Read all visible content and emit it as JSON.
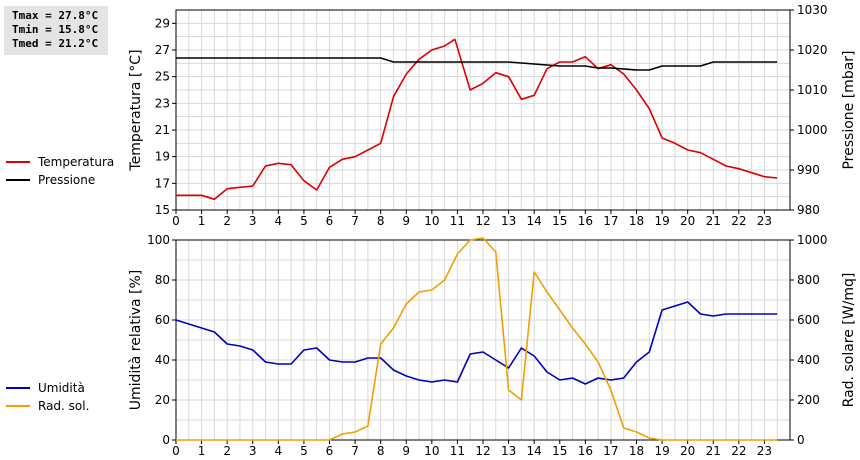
{
  "stats": {
    "tmax": "Tmax = 27.8°C",
    "tmin": "Tmin = 15.8°C",
    "tmed": "Tmed = 21.2°C"
  },
  "colors": {
    "temperature": "#dd0000",
    "pressure": "#000000",
    "humidity": "#0000bb",
    "solar": "#f0a000",
    "grid": "#d8d8d8"
  },
  "chart_data": [
    {
      "type": "line",
      "grid": true,
      "x_ticks": [
        0,
        1,
        2,
        3,
        4,
        5,
        6,
        7,
        8,
        9,
        10,
        11,
        12,
        13,
        14,
        15,
        16,
        17,
        18,
        19,
        20,
        21,
        22,
        23
      ],
      "xlim": [
        0,
        24
      ],
      "ylabel": "Temperatura [°C]",
      "ylim": [
        15,
        30
      ],
      "y_ticks": [
        15,
        17,
        19,
        21,
        23,
        25,
        27,
        29
      ],
      "y2label": "Pressione [mbar]",
      "y2lim": [
        980,
        1030
      ],
      "y2_ticks": [
        980,
        990,
        1000,
        1010,
        1020,
        1030
      ],
      "legend": [
        {
          "name": "Temperatura",
          "color": "#dd0000"
        },
        {
          "name": "Pressione",
          "color": "#000000"
        }
      ],
      "series": [
        {
          "name": "Temperatura",
          "axis": "left",
          "color": "#dd0000",
          "x": [
            0,
            0.5,
            1,
            1.5,
            2,
            2.5,
            3,
            3.5,
            4,
            4.5,
            5,
            5.5,
            6,
            6.5,
            7,
            7.5,
            8,
            8.5,
            9,
            9.5,
            10,
            10.5,
            10.9,
            11.5,
            12,
            12.5,
            13,
            13.5,
            14,
            14.5,
            15,
            15.5,
            16,
            16.5,
            17,
            17.5,
            18,
            18.5,
            19,
            19.5,
            20,
            20.5,
            21,
            21.5,
            22,
            22.5,
            23,
            23.5
          ],
          "y": [
            16.1,
            16.1,
            16.1,
            15.8,
            16.6,
            16.7,
            16.8,
            18.3,
            18.5,
            18.4,
            17.2,
            16.5,
            18.2,
            18.8,
            19,
            19.5,
            20,
            23.5,
            25.2,
            26.3,
            27,
            27.3,
            27.8,
            24,
            24.5,
            25.3,
            25,
            23.3,
            23.6,
            25.6,
            26.1,
            26.1,
            26.5,
            25.6,
            25.9,
            25.2,
            24,
            22.6,
            20.4,
            20,
            19.5,
            19.3,
            18.8,
            18.3,
            18.1,
            17.8,
            17.5,
            17.4
          ]
        },
        {
          "name": "Pressione",
          "axis": "right",
          "color": "#000000",
          "x": [
            0,
            8,
            8.5,
            13,
            15,
            16,
            16.5,
            17,
            18,
            18.5,
            19,
            20,
            20.5,
            21,
            23.5
          ],
          "y": [
            1018,
            1018,
            1017,
            1017,
            1016,
            1016,
            1015.5,
            1015.5,
            1015,
            1015,
            1016,
            1016,
            1016,
            1017,
            1017
          ]
        }
      ]
    },
    {
      "type": "line",
      "grid": true,
      "x_ticks": [
        0,
        1,
        2,
        3,
        4,
        5,
        6,
        7,
        8,
        9,
        10,
        11,
        12,
        13,
        14,
        15,
        16,
        17,
        18,
        19,
        20,
        21,
        22,
        23
      ],
      "xlim": [
        0,
        24
      ],
      "ylabel": "Umidità relativa [%]",
      "ylim": [
        0,
        100
      ],
      "y_ticks": [
        0,
        20,
        40,
        60,
        80,
        100
      ],
      "y2label": "Rad. solare [W/mq]",
      "y2lim": [
        0,
        1000
      ],
      "y2_ticks": [
        0,
        200,
        400,
        600,
        800,
        1000
      ],
      "legend": [
        {
          "name": "Umidità",
          "color": "#0000bb"
        },
        {
          "name": "Rad. sol.",
          "color": "#f0a000"
        }
      ],
      "series": [
        {
          "name": "Umidità",
          "axis": "left",
          "color": "#0000bb",
          "x": [
            0,
            0.5,
            1,
            1.5,
            2,
            2.5,
            3,
            3.5,
            4,
            4.5,
            5,
            5.5,
            6,
            6.5,
            7,
            7.5,
            8,
            8.5,
            9,
            9.5,
            10,
            10.5,
            11,
            11.5,
            12,
            12.5,
            13,
            13.5,
            14,
            14.5,
            15,
            15.5,
            16,
            16.5,
            17,
            17.5,
            18,
            18.5,
            19,
            19.5,
            20,
            20.5,
            21,
            21.5,
            22,
            22.5,
            23,
            23.5
          ],
          "y": [
            60,
            58,
            56,
            54,
            48,
            47,
            45,
            39,
            38,
            38,
            45,
            46,
            40,
            39,
            39,
            41,
            41,
            35,
            32,
            30,
            29,
            30,
            29,
            43,
            44,
            40,
            36,
            46,
            42,
            34,
            30,
            31,
            28,
            31,
            30,
            31,
            39,
            44,
            65,
            67,
            69,
            63,
            62,
            63,
            63,
            63,
            63,
            63
          ]
        },
        {
          "name": "Rad. sol.",
          "axis": "right",
          "color": "#f0a000",
          "x": [
            0,
            1,
            2,
            3,
            4,
            5,
            6,
            6.5,
            7,
            7.5,
            8,
            8.5,
            9,
            9.5,
            10,
            10.5,
            11,
            11.5,
            12,
            12.5,
            13,
            13.5,
            14,
            14.5,
            15,
            15.5,
            16,
            16.5,
            17,
            17.5,
            18,
            18.5,
            19,
            19.5,
            20,
            21,
            22,
            23,
            23.5
          ],
          "y": [
            0,
            0,
            0,
            0,
            0,
            0,
            0,
            30,
            40,
            70,
            480,
            560,
            680,
            740,
            750,
            800,
            930,
            1000,
            1010,
            940,
            250,
            200,
            840,
            740,
            650,
            560,
            480,
            390,
            250,
            60,
            40,
            10,
            0,
            0,
            0,
            0,
            0,
            0,
            0
          ]
        }
      ]
    }
  ]
}
